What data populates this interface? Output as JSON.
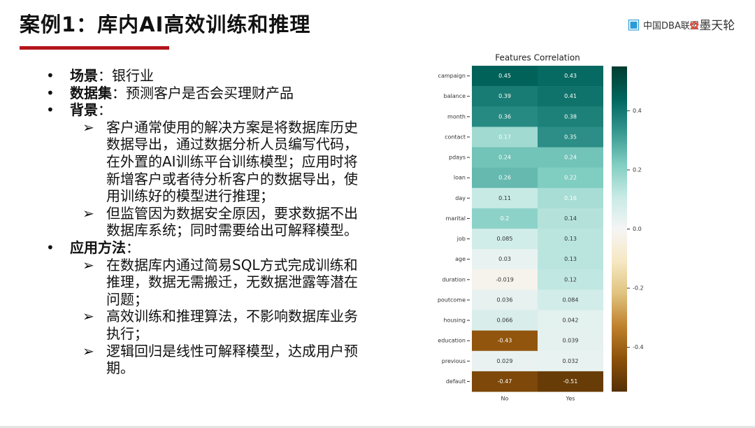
{
  "header": {
    "title": "案例1：库内AI高效训练和推理",
    "logos": [
      "中国DBA联盟",
      "墨天轮"
    ]
  },
  "bullets": [
    {
      "label": "场景",
      "text": "：银行业",
      "sub": []
    },
    {
      "label": "数据集",
      "text": "：预测客户是否会买理财产品",
      "sub": []
    },
    {
      "label": "背景",
      "text": "：",
      "sub": [
        "客户通常使用的解决方案是将数据库历史数据导出，通过数据分析人员编写代码，在外置的AI训练平台训练模型；应用时将新增客户或者待分析客户的数据导出，使用训练好的模型进行推理；",
        "但监管因为数据安全原因，要求数据不出数据库系统；同时需要给出可解释模型。"
      ]
    },
    {
      "label": "应用方法",
      "text": "：",
      "sub": [
        "在数据库内通过简易SQL方式完成训练和推理，数据无需搬迁，无数据泄露等潜在问题；",
        "高效训练和推理算法，不影响数据库业务执行；",
        "逻辑回归是线性可解释模型，达成用户预期。"
      ]
    }
  ],
  "chart_data": {
    "type": "heatmap",
    "title": "Features Correlation",
    "rows": [
      "campaign",
      "balance",
      "month",
      "contact",
      "pdays",
      "loan",
      "day",
      "marital",
      "job",
      "age",
      "duration",
      "poutcome",
      "housing",
      "education",
      "previous",
      "default"
    ],
    "columns": [
      "No",
      "Yes"
    ],
    "values": [
      [
        0.45,
        0.43
      ],
      [
        0.39,
        0.41
      ],
      [
        0.36,
        0.38
      ],
      [
        0.17,
        0.35
      ],
      [
        0.24,
        0.24
      ],
      [
        0.26,
        0.22
      ],
      [
        0.11,
        0.16
      ],
      [
        0.2,
        0.14
      ],
      [
        0.085,
        0.13
      ],
      [
        0.03,
        0.13
      ],
      [
        -0.019,
        0.12
      ],
      [
        0.036,
        0.084
      ],
      [
        0.066,
        0.042
      ],
      [
        -0.43,
        0.039
      ],
      [
        0.029,
        0.032
      ],
      [
        -0.47,
        -0.51
      ]
    ],
    "colormap": "BrBG",
    "zlim": [
      -0.55,
      0.55
    ],
    "zticks": [
      0.4,
      0.2,
      {
        "value": 0,
        "label": "0.0"
      },
      -0.2,
      -0.4
    ]
  }
}
